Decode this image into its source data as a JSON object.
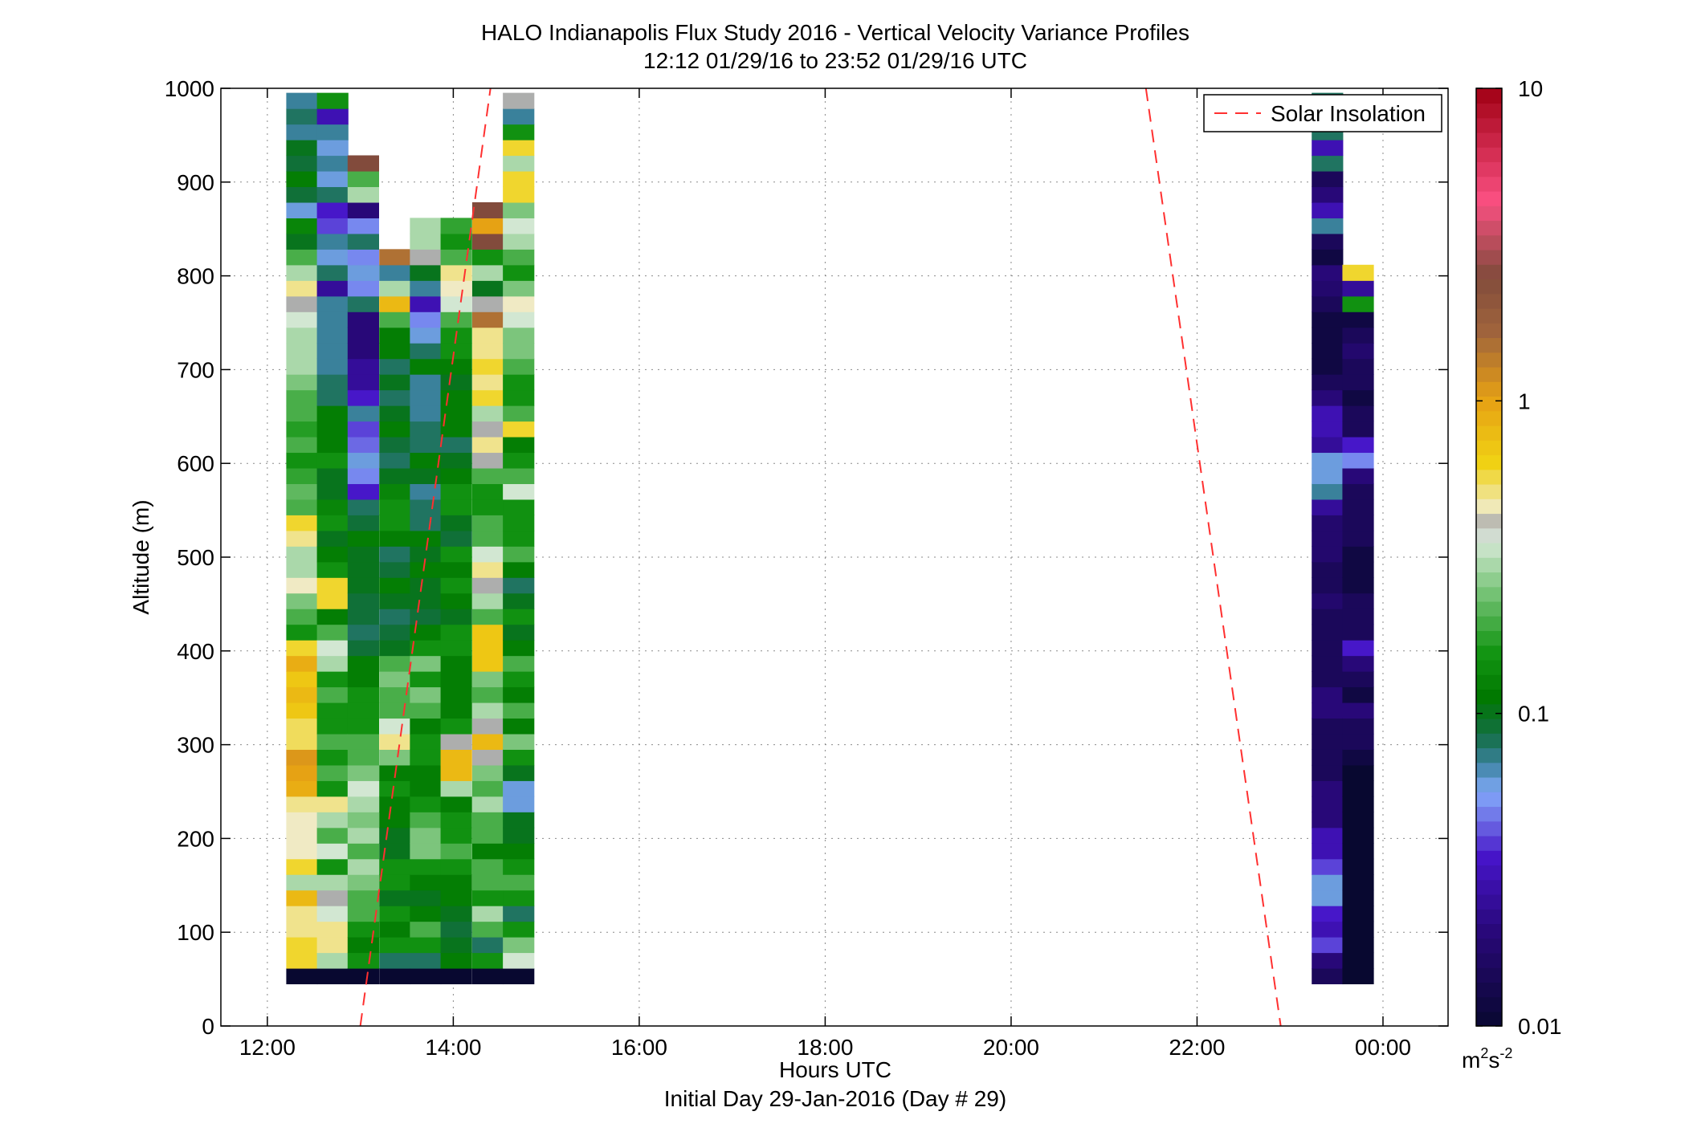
{
  "chart_data": {
    "type": "heatmap",
    "title": "HALO Indianapolis Flux Study 2016 - Vertical Velocity Variance Profiles",
    "subtitle": "12:12 01/29/16 to 23:52 01/29/16  UTC",
    "xlabel": "Hours UTC",
    "x_sublabel": "Initial Day 29-Jan-2016 (Day # 29)",
    "ylabel": "Altitude (m)",
    "colorbar_unit": "m²s⁻²",
    "colorbar_unit_base": "m",
    "colorbar_unit_exp1": "2",
    "colorbar_unit_mid": "s",
    "colorbar_unit_exp2": "-2",
    "colorbar_scale": "log",
    "colorbar_range": [
      0.01,
      10
    ],
    "colorbar_ticks": [
      {
        "value": 10,
        "label": "10"
      },
      {
        "value": 1,
        "label": "1"
      },
      {
        "value": 0.1,
        "label": "0.1"
      },
      {
        "value": 0.01,
        "label": "0.01"
      }
    ],
    "xlim": [
      11.5,
      24.7
    ],
    "ylim": [
      0,
      1000
    ],
    "x_ticks": [
      {
        "value": 12,
        "label": "12:00"
      },
      {
        "value": 14,
        "label": "14:00"
      },
      {
        "value": 16,
        "label": "16:00"
      },
      {
        "value": 18,
        "label": "18:00"
      },
      {
        "value": 20,
        "label": "20:00"
      },
      {
        "value": 22,
        "label": "22:00"
      },
      {
        "value": 24,
        "label": "00:00"
      }
    ],
    "y_ticks": [
      0,
      100,
      200,
      300,
      400,
      500,
      600,
      700,
      800,
      900,
      1000
    ],
    "grid": true,
    "legend": {
      "position": "top-right",
      "entries": [
        {
          "label": "Solar Insolation",
          "style": "dashed",
          "color": "#ff3030"
        }
      ]
    },
    "solar_insolation_lines": [
      {
        "x": [
          13.0,
          14.4
        ],
        "y": [
          0,
          1000
        ]
      },
      {
        "x": [
          21.45,
          22.9
        ],
        "y": [
          1000,
          0
        ]
      }
    ],
    "altitude_bins_m": {
      "start": 45,
      "step": 16.67,
      "count": 57
    },
    "profiles": [
      {
        "time": 12.37,
        "values": [
          0.01,
          0.6,
          0.6,
          0.5,
          0.5,
          0.8,
          0.3,
          0.6,
          0.45,
          0.45,
          0.45,
          0.5,
          0.9,
          1.0,
          1.1,
          0.55,
          0.55,
          0.7,
          0.8,
          0.7,
          0.9,
          0.6,
          0.15,
          0.2,
          0.25,
          0.45,
          0.3,
          0.3,
          0.5,
          0.6,
          0.2,
          0.22,
          0.18,
          0.15,
          0.2,
          0.17,
          0.2,
          0.2,
          0.25,
          0.3,
          0.3,
          0.3,
          0.35,
          0.4,
          0.5,
          0.3,
          0.2,
          0.1,
          0.13,
          0.06,
          0.09,
          0.12,
          0.09,
          0.1,
          0.07,
          0.08,
          0.07
        ]
      },
      {
        "time": 12.7,
        "values": [
          0.01,
          0.3,
          0.5,
          0.5,
          0.35,
          0.4,
          0.3,
          0.15,
          0.35,
          0.2,
          0.3,
          0.5,
          0.15,
          0.2,
          0.15,
          0.2,
          0.15,
          0.15,
          0.2,
          0.15,
          0.3,
          0.35,
          0.2,
          0.12,
          0.6,
          0.6,
          0.15,
          0.12,
          0.1,
          0.15,
          0.13,
          0.1,
          0.1,
          0.15,
          0.12,
          0.12,
          0.12,
          0.08,
          0.08,
          0.07,
          0.07,
          0.07,
          0.07,
          0.07,
          0.025,
          0.08,
          0.06,
          0.07,
          0.04,
          0.035,
          0.08,
          0.06,
          0.07,
          0.06,
          0.07,
          0.03,
          0.15
        ]
      },
      {
        "time": 13.03,
        "values": [
          0.01,
          0.15,
          0.12,
          0.15,
          0.2,
          0.2,
          0.25,
          0.3,
          0.2,
          0.3,
          0.25,
          0.3,
          0.35,
          0.25,
          0.2,
          0.2,
          0.15,
          0.15,
          0.15,
          0.12,
          0.12,
          0.09,
          0.08,
          0.09,
          0.09,
          0.1,
          0.1,
          0.1,
          0.12,
          0.09,
          0.08,
          0.035,
          0.05,
          0.06,
          0.045,
          0.04,
          0.07,
          0.035,
          0.025,
          0.025,
          0.02,
          0.02,
          0.02,
          0.08,
          0.05,
          0.06,
          0.05,
          0.08,
          0.05,
          0.02,
          0.3,
          0.2,
          2.5
        ]
      },
      {
        "time": 13.37,
        "values": [
          0.01,
          0.08,
          0.15,
          0.12,
          0.15,
          0.1,
          0.15,
          0.15,
          0.1,
          0.1,
          0.12,
          0.12,
          0.15,
          0.12,
          0.25,
          0.5,
          0.35,
          0.2,
          0.2,
          0.25,
          0.2,
          0.1,
          0.09,
          0.08,
          0.1,
          0.12,
          0.09,
          0.08,
          0.12,
          0.15,
          0.15,
          0.13,
          0.1,
          0.08,
          0.09,
          0.12,
          0.1,
          0.08,
          0.1,
          0.08,
          0.12,
          0.12,
          0.2,
          0.8,
          0.3,
          0.07,
          1.5
        ]
      },
      {
        "time": 13.7,
        "values": [
          0.01,
          0.08,
          0.15,
          0.2,
          0.12,
          0.1,
          0.12,
          0.15,
          0.25,
          0.25,
          0.2,
          0.15,
          0.12,
          0.12,
          0.15,
          0.15,
          0.12,
          0.2,
          0.25,
          0.15,
          0.25,
          0.15,
          0.12,
          0.09,
          0.1,
          0.1,
          0.12,
          0.1,
          0.12,
          0.08,
          0.08,
          0.07,
          0.1,
          0.12,
          0.08,
          0.08,
          0.07,
          0.07,
          0.07,
          0.12,
          0.08,
          0.06,
          0.05,
          0.03,
          0.07,
          0.1,
          0.4,
          0.3,
          0.3
        ]
      },
      {
        "time": 14.03,
        "values": [
          0.01,
          0.12,
          0.1,
          0.09,
          0.1,
          0.12,
          0.12,
          0.15,
          0.2,
          0.15,
          0.15,
          0.12,
          0.3,
          0.8,
          0.8,
          0.4,
          0.15,
          0.12,
          0.12,
          0.12,
          0.12,
          0.15,
          0.15,
          0.1,
          0.12,
          0.15,
          0.12,
          0.15,
          0.09,
          0.1,
          0.15,
          0.15,
          0.12,
          0.1,
          0.08,
          0.12,
          0.12,
          0.12,
          0.1,
          0.12,
          0.15,
          0.15,
          0.2,
          0.35,
          0.45,
          0.5,
          0.2,
          0.15,
          0.18
        ]
      },
      {
        "time": 14.37,
        "values": [
          0.01,
          0.15,
          0.08,
          0.2,
          0.3,
          0.15,
          0.2,
          0.2,
          0.12,
          0.2,
          0.2,
          0.3,
          0.2,
          0.25,
          0.4,
          0.8,
          0.4,
          0.3,
          0.2,
          0.25,
          0.7,
          0.7,
          0.7,
          0.2,
          0.3,
          0.4,
          0.5,
          0.35,
          0.2,
          0.2,
          0.15,
          0.15,
          0.2,
          0.4,
          0.5,
          0.4,
          0.3,
          0.6,
          0.5,
          0.6,
          0.5,
          0.5,
          1.5,
          0.4,
          0.1,
          0.3,
          0.15,
          2.5,
          1.0,
          2.5
        ]
      },
      {
        "time": 14.7,
        "values": [
          0.01,
          0.35,
          0.25,
          0.15,
          0.08,
          0.15,
          0.2,
          0.15,
          0.12,
          0.1,
          0.1,
          0.06,
          0.06,
          0.1,
          0.15,
          0.25,
          0.12,
          0.2,
          0.12,
          0.15,
          0.2,
          0.12,
          0.1,
          0.15,
          0.1,
          0.08,
          0.12,
          0.2,
          0.15,
          0.15,
          0.15,
          0.35,
          0.2,
          0.15,
          0.12,
          0.6,
          0.2,
          0.15,
          0.15,
          0.2,
          0.25,
          0.25,
          0.35,
          0.45,
          0.25,
          0.15,
          0.2,
          0.3,
          0.35,
          0.25,
          0.6,
          0.6,
          0.3,
          0.6,
          0.15,
          0.07,
          0.4
        ]
      },
      {
        "time": 23.4,
        "values": [
          0.015,
          0.02,
          0.04,
          0.03,
          0.035,
          0.06,
          0.06,
          0.04,
          0.03,
          0.03,
          0.02,
          0.02,
          0.02,
          0.015,
          0.015,
          0.015,
          0.015,
          0.02,
          0.02,
          0.015,
          0.015,
          0.015,
          0.015,
          0.015,
          0.018,
          0.015,
          0.015,
          0.018,
          0.018,
          0.018,
          0.025,
          0.07,
          0.06,
          0.06,
          0.025,
          0.03,
          0.03,
          0.02,
          0.015,
          0.012,
          0.012,
          0.012,
          0.012,
          0.015,
          0.018,
          0.02,
          0.012,
          0.015,
          0.07,
          0.03,
          0.02,
          0.015,
          0.08,
          0.03,
          0.08,
          0.04,
          0.08
        ]
      },
      {
        "time": 23.73,
        "values": [
          0.01,
          0.01,
          0.01,
          0.01,
          0.01,
          0.01,
          0.01,
          0.01,
          0.01,
          0.01,
          0.01,
          0.01,
          0.01,
          0.01,
          0.012,
          0.015,
          0.015,
          0.02,
          0.012,
          0.015,
          0.02,
          0.035,
          0.015,
          0.015,
          0.015,
          0.012,
          0.012,
          0.012,
          0.015,
          0.015,
          0.015,
          0.015,
          0.02,
          0.05,
          0.035,
          0.015,
          0.015,
          0.012,
          0.015,
          0.015,
          0.018,
          0.015,
          0.012,
          0.15,
          0.025,
          0.6
        ]
      }
    ]
  }
}
